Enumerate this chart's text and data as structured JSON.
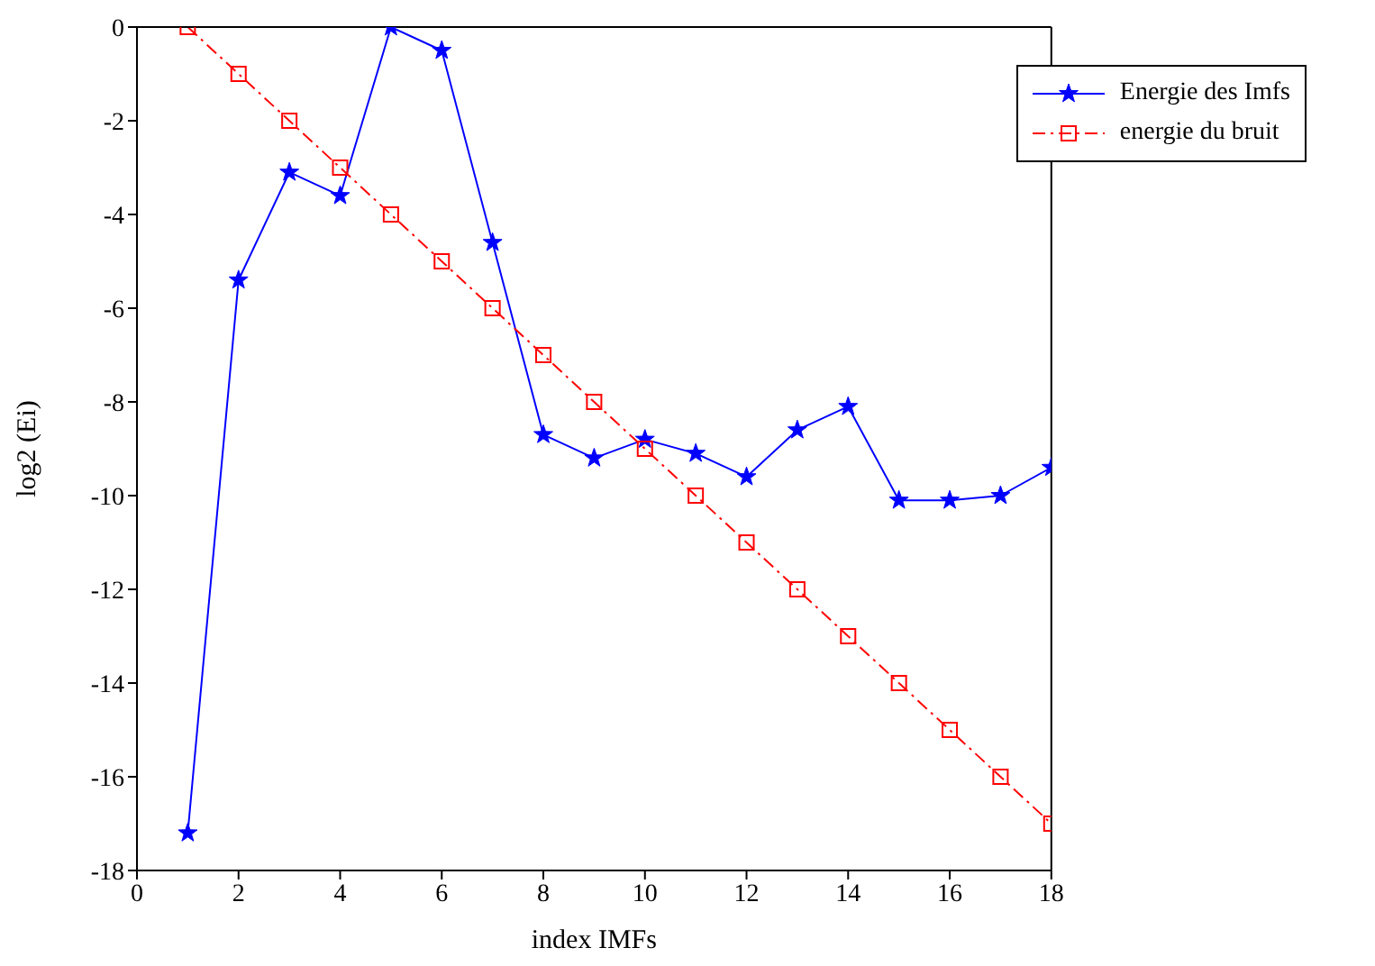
{
  "chart_data": {
    "type": "line",
    "xlabel": "index IMFs",
    "ylabel": "log2 (Ei)",
    "x": [
      1,
      2,
      3,
      4,
      5,
      6,
      7,
      8,
      9,
      10,
      11,
      12,
      13,
      14,
      15,
      16,
      17,
      18
    ],
    "series": [
      {
        "name": "Energie des Imfs",
        "color": "#0000ff",
        "marker": "star",
        "line_style": "solid",
        "values": [
          -17.2,
          -5.4,
          -3.1,
          -3.6,
          0,
          -0.5,
          -4.6,
          -8.7,
          -9.2,
          -8.8,
          -9.1,
          -9.6,
          -8.6,
          -8.1,
          -10.1,
          -10.1,
          -10.0,
          -9.4
        ]
      },
      {
        "name": "energie du bruit",
        "color": "#ff0000",
        "marker": "square",
        "line_style": "dashed",
        "values": [
          0,
          -1,
          -2,
          -3,
          -4,
          -5,
          -6,
          -7,
          -8,
          -9,
          -10,
          -11,
          -12,
          -13,
          -14,
          -15,
          -16,
          -17
        ]
      }
    ],
    "xlim": [
      0,
      18
    ],
    "xticks": [
      0,
      2,
      4,
      6,
      8,
      10,
      12,
      14,
      16,
      18
    ],
    "ylim": [
      -18,
      0
    ],
    "yticks": [
      -18,
      -16,
      -14,
      -12,
      -10,
      -8,
      -6,
      -4,
      -2,
      0
    ],
    "grid": false,
    "legend": "top right"
  }
}
